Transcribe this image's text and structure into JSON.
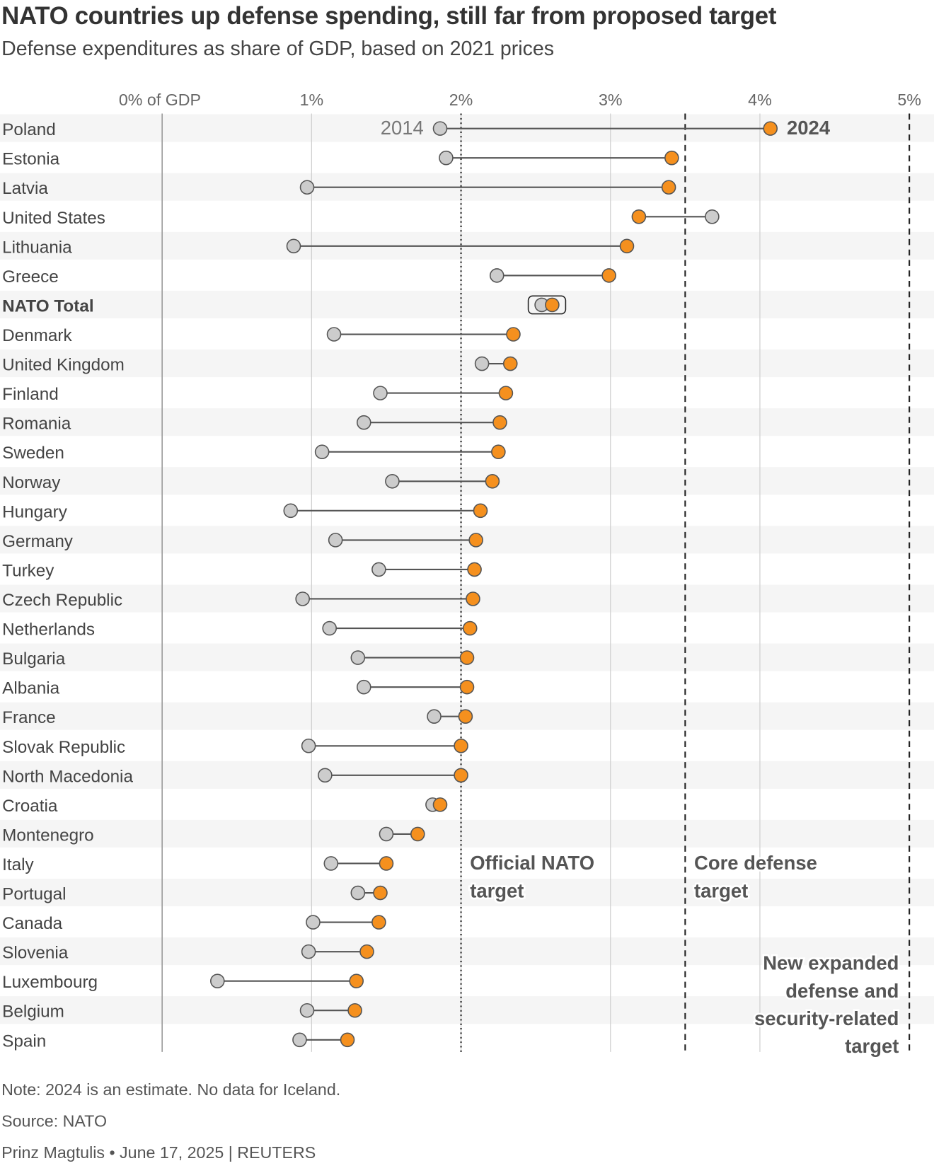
{
  "title": "NATO countries up defense spending, still far from proposed target",
  "subtitle": "Defense expenditures as share of GDP, based on 2021 prices",
  "footer": {
    "note": "Note: 2024 is an estimate. No data for Iceland.",
    "source": "Source: NATO",
    "credit": "Prinz Magtulis • June 17, 2025 | REUTERS"
  },
  "colors": {
    "y2014": "#cccccc",
    "y2024": "#f5901e",
    "line": "#555555",
    "band": "#f5f5f5"
  },
  "chart_data": {
    "type": "dumbbell",
    "xlim": [
      0,
      5
    ],
    "tick_labels": [
      "0% of GDP",
      "1%",
      "2%",
      "3%",
      "4%",
      "5%"
    ],
    "series_labels": {
      "start": "2014",
      "end": "2024"
    },
    "reference_lines": [
      {
        "value": 2,
        "style": "dotted",
        "label": [
          "Official NATO",
          "target"
        ]
      },
      {
        "value": 3.5,
        "style": "dashed",
        "label": [
          "Core defense",
          "target"
        ]
      },
      {
        "value": 5,
        "style": "dashed",
        "label": [
          "New expanded",
          "defense and",
          "security-related",
          "target"
        ]
      }
    ],
    "rows": [
      {
        "country": "Poland",
        "y2014": 1.86,
        "y2024": 4.07
      },
      {
        "country": "Estonia",
        "y2014": 1.9,
        "y2024": 3.41
      },
      {
        "country": "Latvia",
        "y2014": 0.97,
        "y2024": 3.39
      },
      {
        "country": "United States",
        "y2014": 3.68,
        "y2024": 3.19
      },
      {
        "country": "Lithuania",
        "y2014": 0.88,
        "y2024": 3.11
      },
      {
        "country": "Greece",
        "y2014": 2.24,
        "y2024": 2.99
      },
      {
        "country": "NATO Total",
        "y2014": 2.54,
        "y2024": 2.61,
        "highlight": true
      },
      {
        "country": "Denmark",
        "y2014": 1.15,
        "y2024": 2.35
      },
      {
        "country": "United Kingdom",
        "y2014": 2.14,
        "y2024": 2.33
      },
      {
        "country": "Finland",
        "y2014": 1.46,
        "y2024": 2.3
      },
      {
        "country": "Romania",
        "y2014": 1.35,
        "y2024": 2.26
      },
      {
        "country": "Sweden",
        "y2014": 1.07,
        "y2024": 2.25
      },
      {
        "country": "Norway",
        "y2014": 1.54,
        "y2024": 2.21
      },
      {
        "country": "Hungary",
        "y2014": 0.86,
        "y2024": 2.13
      },
      {
        "country": "Germany",
        "y2014": 1.16,
        "y2024": 2.1
      },
      {
        "country": "Turkey",
        "y2014": 1.45,
        "y2024": 2.09
      },
      {
        "country": "Czech Republic",
        "y2014": 0.94,
        "y2024": 2.08
      },
      {
        "country": "Netherlands",
        "y2014": 1.12,
        "y2024": 2.06
      },
      {
        "country": "Bulgaria",
        "y2014": 1.31,
        "y2024": 2.04
      },
      {
        "country": "Albania",
        "y2014": 1.35,
        "y2024": 2.04
      },
      {
        "country": "France",
        "y2014": 1.82,
        "y2024": 2.03
      },
      {
        "country": "Slovak Republic",
        "y2014": 0.98,
        "y2024": 2.0
      },
      {
        "country": "North Macedonia",
        "y2014": 1.09,
        "y2024": 2.0
      },
      {
        "country": "Croatia",
        "y2014": 1.81,
        "y2024": 1.86
      },
      {
        "country": "Montenegro",
        "y2014": 1.5,
        "y2024": 1.71
      },
      {
        "country": "Italy",
        "y2014": 1.13,
        "y2024": 1.5
      },
      {
        "country": "Portugal",
        "y2014": 1.31,
        "y2024": 1.46
      },
      {
        "country": "Canada",
        "y2014": 1.01,
        "y2024": 1.45
      },
      {
        "country": "Slovenia",
        "y2014": 0.98,
        "y2024": 1.37
      },
      {
        "country": "Luxembourg",
        "y2014": 0.37,
        "y2024": 1.3
      },
      {
        "country": "Belgium",
        "y2014": 0.97,
        "y2024": 1.29
      },
      {
        "country": "Spain",
        "y2014": 0.92,
        "y2024": 1.24
      }
    ]
  }
}
